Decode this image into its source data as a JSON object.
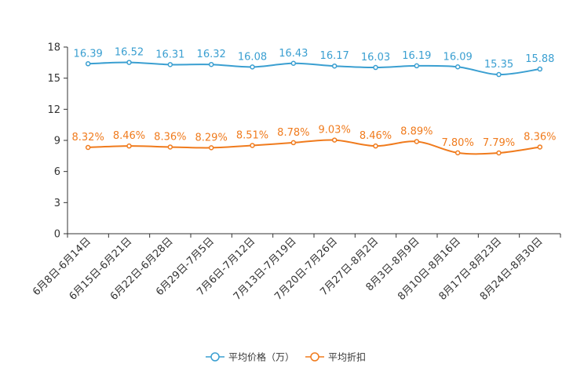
{
  "chart_data": {
    "type": "line",
    "title": "",
    "xlabel": "",
    "ylabel": "",
    "ylim": [
      0,
      18
    ],
    "yticks": [
      0,
      3,
      6,
      9,
      12,
      15,
      18
    ],
    "grid": false,
    "legend_position": "bottom-center",
    "categories": [
      "6月8日-6月14日",
      "6月15日-6月21日",
      "6月22日-6月28日",
      "6月29日-7月5日",
      "7月6日-7月12日",
      "7月13日-7月19日",
      "7月20日-7月26日",
      "7月27日-8月2日",
      "8月3日-8月9日",
      "8月10日-8月16日",
      "8月17日-8月23日",
      "8月24日-8月30日"
    ],
    "series": [
      {
        "name": "平均价格（万）",
        "color": "#3a9fd1",
        "values": [
          16.39,
          16.52,
          16.31,
          16.32,
          16.08,
          16.43,
          16.17,
          16.03,
          16.19,
          16.09,
          15.35,
          15.88
        ],
        "labels": [
          "16.39",
          "16.52",
          "16.31",
          "16.32",
          "16.08",
          "16.43",
          "16.17",
          "16.03",
          "16.19",
          "16.09",
          "15.35",
          "15.88"
        ]
      },
      {
        "name": "平均折扣",
        "color": "#f07b1d",
        "values": [
          8.32,
          8.46,
          8.36,
          8.29,
          8.51,
          8.78,
          9.03,
          8.46,
          8.89,
          7.8,
          7.79,
          8.36
        ],
        "labels": [
          "8.32%",
          "8.46%",
          "8.36%",
          "8.29%",
          "8.51%",
          "8.78%",
          "9.03%",
          "8.46%",
          "8.89%",
          "7.80%",
          "7.79%",
          "8.36%"
        ]
      }
    ]
  }
}
